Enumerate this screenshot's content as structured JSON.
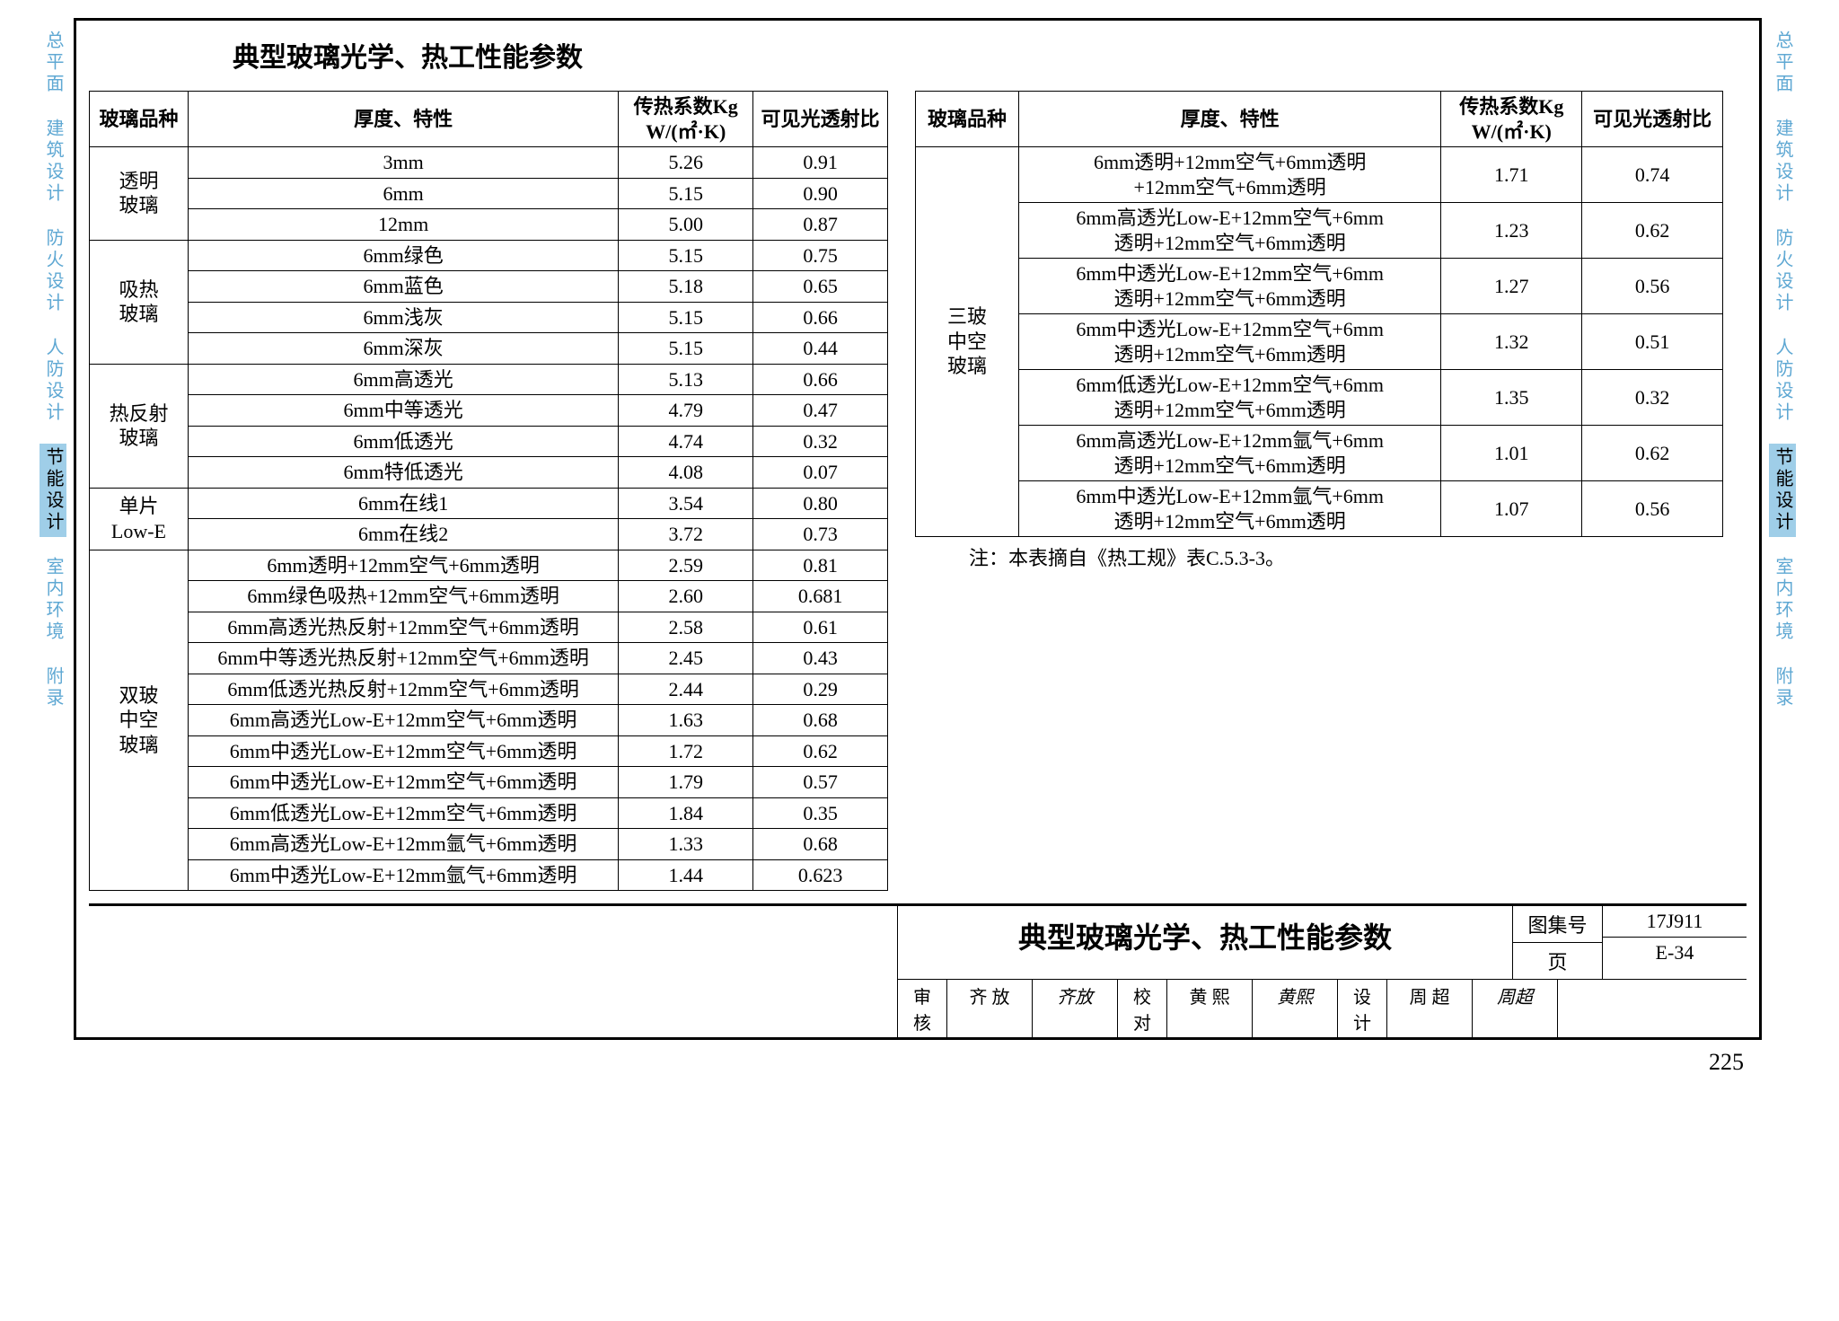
{
  "colors": {
    "tab_inactive": "#5fa8d3",
    "tab_active_bg": "#9fcee8",
    "border": "#000000",
    "background": "#ffffff"
  },
  "typography": {
    "title_fontsize": 30,
    "table_fontsize": 22,
    "drawing_title_fontsize": 32,
    "page_no_fontsize": 26
  },
  "side_tabs": [
    {
      "label": "总平面",
      "active": false
    },
    {
      "label": "建筑设计",
      "active": false
    },
    {
      "label": "防火设计",
      "active": false
    },
    {
      "label": "人防设计",
      "active": false
    },
    {
      "label": "节能设计",
      "active": true
    },
    {
      "label": "室内环境",
      "active": false
    },
    {
      "label": "附录",
      "active": false
    }
  ],
  "title": "典型玻璃光学、热工性能参数",
  "headers": {
    "type": "玻璃品种",
    "spec": "厚度、特性",
    "k": "传热系数Kg\nW/(㎡·K)",
    "vt": "可见光透射比"
  },
  "left_table": {
    "groups": [
      {
        "name": "透明\n玻璃",
        "rows": [
          {
            "spec": "3mm",
            "k": "5.26",
            "vt": "0.91"
          },
          {
            "spec": "6mm",
            "k": "5.15",
            "vt": "0.90"
          },
          {
            "spec": "12mm",
            "k": "5.00",
            "vt": "0.87"
          }
        ]
      },
      {
        "name": "吸热\n玻璃",
        "rows": [
          {
            "spec": "6mm绿色",
            "k": "5.15",
            "vt": "0.75"
          },
          {
            "spec": "6mm蓝色",
            "k": "5.18",
            "vt": "0.65"
          },
          {
            "spec": "6mm浅灰",
            "k": "5.15",
            "vt": "0.66"
          },
          {
            "spec": "6mm深灰",
            "k": "5.15",
            "vt": "0.44"
          }
        ]
      },
      {
        "name": "热反射\n玻璃",
        "rows": [
          {
            "spec": "6mm高透光",
            "k": "5.13",
            "vt": "0.66"
          },
          {
            "spec": "6mm中等透光",
            "k": "4.79",
            "vt": "0.47"
          },
          {
            "spec": "6mm低透光",
            "k": "4.74",
            "vt": "0.32"
          },
          {
            "spec": "6mm特低透光",
            "k": "4.08",
            "vt": "0.07"
          }
        ]
      },
      {
        "name": "单片\nLow-E",
        "rows": [
          {
            "spec": "6mm在线1",
            "k": "3.54",
            "vt": "0.80"
          },
          {
            "spec": "6mm在线2",
            "k": "3.72",
            "vt": "0.73"
          }
        ]
      },
      {
        "name": "双玻\n中空\n玻璃",
        "rows": [
          {
            "spec": "6mm透明+12mm空气+6mm透明",
            "k": "2.59",
            "vt": "0.81"
          },
          {
            "spec": "6mm绿色吸热+12mm空气+6mm透明",
            "k": "2.60",
            "vt": "0.681"
          },
          {
            "spec": "6mm高透光热反射+12mm空气+6mm透明",
            "k": "2.58",
            "vt": "0.61"
          },
          {
            "spec": "6mm中等透光热反射+12mm空气+6mm透明",
            "k": "2.45",
            "vt": "0.43"
          },
          {
            "spec": "6mm低透光热反射+12mm空气+6mm透明",
            "k": "2.44",
            "vt": "0.29"
          },
          {
            "spec": "6mm高透光Low-E+12mm空气+6mm透明",
            "k": "1.63",
            "vt": "0.68"
          },
          {
            "spec": "6mm中透光Low-E+12mm空气+6mm透明",
            "k": "1.72",
            "vt": "0.62"
          },
          {
            "spec": "6mm中透光Low-E+12mm空气+6mm透明",
            "k": "1.79",
            "vt": "0.57"
          },
          {
            "spec": "6mm低透光Low-E+12mm空气+6mm透明",
            "k": "1.84",
            "vt": "0.35"
          },
          {
            "spec": "6mm高透光Low-E+12mm氩气+6mm透明",
            "k": "1.33",
            "vt": "0.68"
          },
          {
            "spec": "6mm中透光Low-E+12mm氩气+6mm透明",
            "k": "1.44",
            "vt": "0.623"
          }
        ]
      }
    ]
  },
  "right_table": {
    "groups": [
      {
        "name": "三玻\n中空\n玻璃",
        "rows": [
          {
            "spec": "6mm透明+12mm空气+6mm透明\n+12mm空气+6mm透明",
            "k": "1.71",
            "vt": "0.74"
          },
          {
            "spec": "6mm高透光Low-E+12mm空气+6mm\n透明+12mm空气+6mm透明",
            "k": "1.23",
            "vt": "0.62"
          },
          {
            "spec": "6mm中透光Low-E+12mm空气+6mm\n透明+12mm空气+6mm透明",
            "k": "1.27",
            "vt": "0.56"
          },
          {
            "spec": "6mm中透光Low-E+12mm空气+6mm\n透明+12mm空气+6mm透明",
            "k": "1.32",
            "vt": "0.51"
          },
          {
            "spec": "6mm低透光Low-E+12mm空气+6mm\n透明+12mm空气+6mm透明",
            "k": "1.35",
            "vt": "0.32"
          },
          {
            "spec": "6mm高透光Low-E+12mm氩气+6mm\n透明+12mm空气+6mm透明",
            "k": "1.01",
            "vt": "0.62"
          },
          {
            "spec": "6mm中透光Low-E+12mm氩气+6mm\n透明+12mm空气+6mm透明",
            "k": "1.07",
            "vt": "0.56"
          }
        ]
      }
    ]
  },
  "footnote": "注：本表摘自《热工规》表C.5.3-3。",
  "title_block": {
    "drawing_title": "典型玻璃光学、热工性能参数",
    "atlas_label": "图集号",
    "atlas_value": "17J911",
    "page_label": "页",
    "page_value": "E-34",
    "signatures": [
      {
        "role": "审核",
        "name": "齐 放",
        "script": "齐放"
      },
      {
        "role": "校对",
        "name": "黄 熙",
        "script": "黄熙"
      },
      {
        "role": "设计",
        "name": "周 超",
        "script": "周超"
      }
    ]
  },
  "page_number": "225"
}
